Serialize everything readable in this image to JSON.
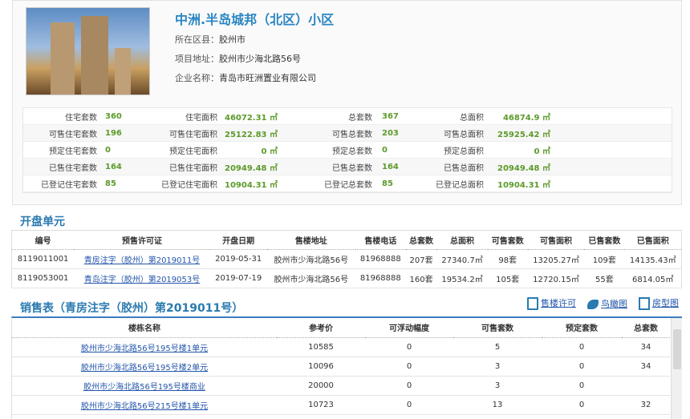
{
  "project": {
    "title": "中洲.半岛城邦（北区）小区",
    "district_label": "所在区县：",
    "district": "胶州市",
    "address_label": "项目地址：",
    "address": "胶州市少海北路56号",
    "company_label": "企业名称：",
    "company": "青岛市旺洲置业有限公司"
  },
  "stats": [
    [
      [
        "住宅套数",
        "360"
      ],
      [
        "住宅面积",
        "46072.31 ㎡"
      ],
      [
        "总套数",
        "367"
      ],
      [
        "总面积",
        "46874.9 ㎡"
      ]
    ],
    [
      [
        "可售住宅套数",
        "196"
      ],
      [
        "可售住宅面积",
        "25122.83 ㎡"
      ],
      [
        "可售总套数",
        "203"
      ],
      [
        "可售总面积",
        "25925.42 ㎡"
      ]
    ],
    [
      [
        "预定住宅套数",
        "0"
      ],
      [
        "预定住宅面积",
        "0 ㎡"
      ],
      [
        "预定总套数",
        "0"
      ],
      [
        "预定总面积",
        "0 ㎡"
      ]
    ],
    [
      [
        "已售住宅套数",
        "164"
      ],
      [
        "已售住宅面积",
        "20949.48 ㎡"
      ],
      [
        "已售总套数",
        "164"
      ],
      [
        "已售总面积",
        "20949.48 ㎡"
      ]
    ],
    [
      [
        "已登记住宅套数",
        "85"
      ],
      [
        "已登记住宅面积",
        "10904.31 ㎡"
      ],
      [
        "已登记总套数",
        "85"
      ],
      [
        "已登记总面积",
        "10904.31 ㎡"
      ]
    ]
  ],
  "units": {
    "title": "开盘单元",
    "headers": [
      "编号",
      "预售许可证",
      "开盘日期",
      "售楼地址",
      "售楼电话",
      "总套数",
      "总面积",
      "可售套数",
      "可售面积",
      "已售套数",
      "已售面积"
    ],
    "rows": [
      [
        "8119011001",
        "青房注字（胶州）第2019011号",
        "2019-05-31",
        "胶州市少海北路56号",
        "81968888",
        "207套",
        "27340.7㎡",
        "98套",
        "13205.27㎡",
        "109套",
        "14135.43㎡"
      ],
      [
        "8119053001",
        "青岛注字（胶州）第2019053号",
        "2019-07-19",
        "胶州市少海北路56号",
        "81968888",
        "160套",
        "19534.2㎡",
        "105套",
        "12720.15㎡",
        "55套",
        "6814.05㎡"
      ]
    ]
  },
  "sales": {
    "title": "销售表（青房注字（胶州）第2019011号）",
    "tools": [
      "售楼许可",
      "鸟瞰图",
      "房型图"
    ],
    "headers": [
      "楼栋名称",
      "参考价",
      "可浮动幅度",
      "可售套数",
      "预定套数",
      "总套数"
    ],
    "rows": [
      [
        "胶州市少海北路56号195号楼1单元",
        "10585",
        "0",
        "5",
        "0",
        "34"
      ],
      [
        "胶州市少海北路56号195号楼2单元",
        "10096",
        "0",
        "3",
        "0",
        "34"
      ],
      [
        "胶州市少海北路56号195号楼商业",
        "20000",
        "0",
        "3",
        "0",
        ""
      ],
      [
        "胶州市少海北路56号215号楼1单元",
        "10723",
        "0",
        "13",
        "0",
        "32"
      ]
    ]
  }
}
